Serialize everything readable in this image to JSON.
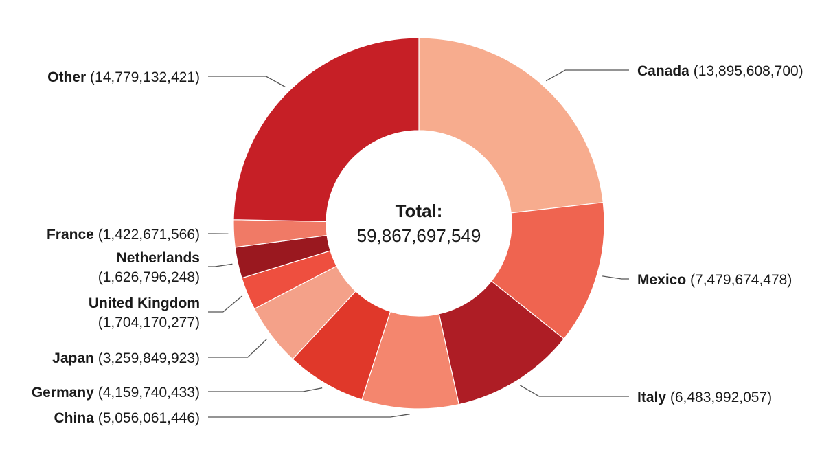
{
  "chart_data": {
    "type": "pie",
    "variant": "donut",
    "center": {
      "title": "Total:",
      "value": "59,867,697,549"
    },
    "categories": [
      "Canada",
      "Mexico",
      "Italy",
      "China",
      "Germany",
      "Japan",
      "United Kingdom",
      "Netherlands",
      "France",
      "Other"
    ],
    "values": [
      13895608700,
      7479674478,
      6483992057,
      5056061446,
      4159740433,
      3259849923,
      1704170277,
      1626796248,
      1422671566,
      14779132421
    ],
    "value_labels": [
      "13,895,608,700",
      "7,479,674,478",
      "6,483,992,057",
      "5,056,061,446",
      "4,159,740,433",
      "3,259,849,923",
      "1,704,170,277",
      "1,626,796,248",
      "1,422,671,566",
      "14,779,132,421"
    ],
    "colors": [
      "#f7ac8e",
      "#ef6450",
      "#ae1d25",
      "#f4866e",
      "#e0382a",
      "#f4a189",
      "#ee4f3f",
      "#9a181f",
      "#f07a66",
      "#c61f26"
    ]
  }
}
